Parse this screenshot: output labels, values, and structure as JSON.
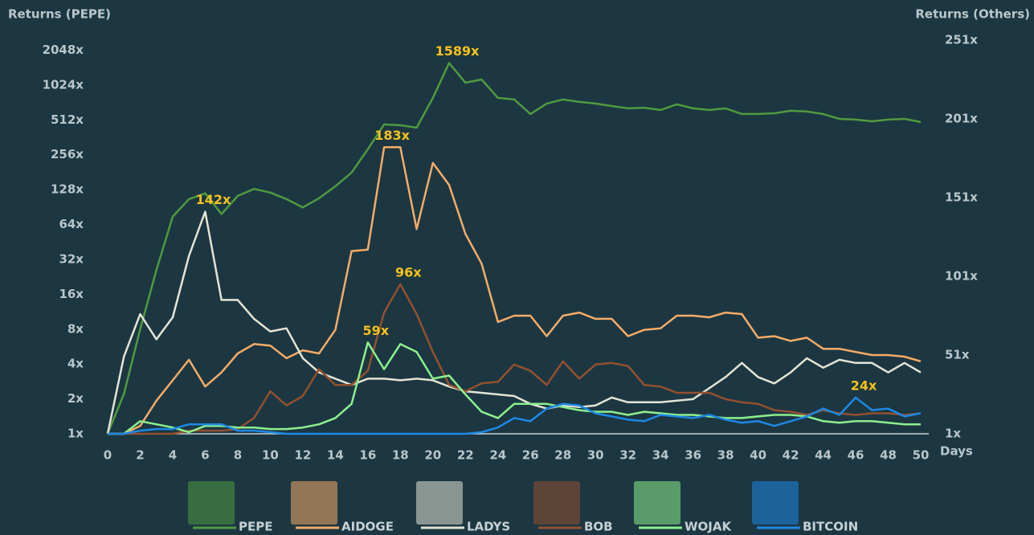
{
  "chart_data": {
    "type": "line",
    "y_label": "Returns (PEPE)",
    "y2_label": "Returns (Others)",
    "x_label": "Days",
    "x": [
      0,
      1,
      2,
      3,
      4,
      5,
      6,
      7,
      8,
      9,
      10,
      11,
      12,
      13,
      14,
      15,
      16,
      17,
      18,
      19,
      20,
      21,
      22,
      23,
      24,
      25,
      26,
      27,
      28,
      29,
      30,
      31,
      32,
      33,
      34,
      35,
      36,
      37,
      38,
      39,
      40,
      41,
      42,
      43,
      44,
      45,
      46,
      47,
      48,
      49,
      50
    ],
    "xlim": [
      0,
      50
    ],
    "xticks": [
      0,
      2,
      4,
      6,
      8,
      10,
      12,
      14,
      16,
      18,
      20,
      22,
      24,
      26,
      28,
      30,
      32,
      34,
      36,
      38,
      40,
      42,
      44,
      46,
      48,
      50
    ],
    "yscale": "log",
    "ylim": [
      1,
      2500
    ],
    "yticks": [
      {
        "value": 1,
        "label": "1x"
      },
      {
        "value": 2,
        "label": "2x"
      },
      {
        "value": 4,
        "label": "4x"
      },
      {
        "value": 8,
        "label": "8x"
      },
      {
        "value": 16,
        "label": "16x"
      },
      {
        "value": 32,
        "label": "32x"
      },
      {
        "value": 64,
        "label": "64x"
      },
      {
        "value": 128,
        "label": "128x"
      },
      {
        "value": 256,
        "label": "256x"
      },
      {
        "value": 512,
        "label": "512x"
      },
      {
        "value": 1024,
        "label": "1024x"
      },
      {
        "value": 2048,
        "label": "2048x"
      }
    ],
    "y2lim": [
      1,
      251
    ],
    "y2ticks": [
      {
        "value": 1,
        "label": "1x"
      },
      {
        "value": 51,
        "label": "51x"
      },
      {
        "value": 101,
        "label": "101x"
      },
      {
        "value": 151,
        "label": "151x"
      },
      {
        "value": 201,
        "label": "201x"
      },
      {
        "value": 251,
        "label": "251x"
      }
    ],
    "series": [
      {
        "name": "PEPE",
        "color": "#4f9a3f",
        "axis": "y",
        "values": [
          1,
          2.2,
          8,
          26,
          75,
          106,
          119,
          79,
          113,
          130,
          121,
          106,
          90,
          108,
          137,
          180,
          286,
          468,
          461,
          439,
          793,
          1589,
          1075,
          1144,
          793,
          770,
          576,
          709,
          770,
          733,
          709,
          675,
          644,
          653,
          624,
          698,
          644,
          624,
          644,
          576,
          576,
          585,
          614,
          605,
          576,
          523,
          515,
          498,
          515,
          523,
          491
        ],
        "value_labels": [
          null,
          null,
          null,
          null,
          null,
          null,
          null,
          null,
          null,
          null,
          null,
          null,
          null,
          null,
          null,
          null,
          null,
          null,
          null,
          null,
          null,
          "1589x",
          null,
          null,
          null,
          null,
          null,
          null,
          null,
          null,
          null,
          null,
          null,
          null,
          null,
          null,
          null,
          null,
          null,
          null,
          null,
          null,
          null,
          null,
          null,
          null,
          null,
          null,
          null,
          null,
          null
        ]
      },
      {
        "name": "AIDOGE",
        "color": "#f6ab66",
        "axis": "y2",
        "values": [
          1,
          1,
          6,
          22,
          35,
          48,
          31,
          40,
          52,
          58,
          57,
          49,
          54,
          52,
          67,
          117,
          118,
          183,
          183,
          131,
          173,
          159,
          128,
          109,
          72,
          76,
          76,
          63,
          76,
          78,
          74,
          74,
          63,
          67,
          68,
          76,
          76,
          75,
          78,
          77,
          62,
          63,
          60,
          62,
          55,
          55,
          53,
          51,
          51,
          50,
          47
        ],
        "value_labels": [
          null,
          null,
          null,
          null,
          null,
          null,
          null,
          null,
          null,
          null,
          null,
          null,
          null,
          null,
          null,
          null,
          null,
          "183x",
          null,
          null,
          null,
          null,
          null,
          null,
          null,
          null,
          null,
          null,
          null,
          null,
          null,
          null,
          null,
          null,
          null,
          null,
          null,
          null,
          null,
          null,
          null,
          null,
          null,
          null,
          null,
          null,
          null,
          null,
          null,
          null,
          null
        ]
      },
      {
        "name": "LADYS",
        "color": "#e4e4d4",
        "axis": "y2",
        "values": [
          1,
          50,
          77,
          61,
          75,
          114,
          142,
          86,
          86,
          74,
          66,
          68,
          49,
          40,
          36,
          32,
          36,
          36,
          35,
          36,
          35,
          31,
          28,
          27,
          26,
          25,
          20,
          17,
          19,
          18,
          19,
          24,
          21,
          21,
          21,
          22,
          23,
          30,
          37,
          46,
          37,
          33,
          40,
          49,
          43,
          48,
          46,
          46,
          40,
          46,
          40
        ],
        "value_labels": [
          null,
          null,
          null,
          null,
          null,
          null,
          "142x",
          null,
          null,
          null,
          null,
          null,
          null,
          null,
          null,
          null,
          null,
          null,
          null,
          null,
          null,
          null,
          null,
          null,
          null,
          null,
          null,
          null,
          null,
          null,
          null,
          null,
          null,
          null,
          null,
          null,
          null,
          null,
          null,
          null,
          null,
          null,
          null,
          null,
          null,
          null,
          null,
          null,
          null,
          null,
          null
        ]
      },
      {
        "name": "BOB",
        "color": "#93502f",
        "axis": "y2",
        "values": [
          1,
          1,
          1,
          1,
          1,
          3,
          3,
          3,
          4,
          11,
          28,
          19,
          25,
          42,
          32,
          32,
          41,
          78,
          96,
          77,
          53,
          32,
          28,
          33,
          34,
          45,
          41,
          32,
          47,
          36,
          45,
          46,
          44,
          32,
          31,
          27,
          27,
          27,
          23,
          21,
          20,
          16,
          15,
          13,
          16,
          14,
          13,
          14,
          14,
          13,
          14
        ],
        "value_labels": [
          null,
          null,
          null,
          null,
          null,
          null,
          null,
          null,
          null,
          null,
          null,
          null,
          null,
          null,
          null,
          null,
          null,
          null,
          "96x",
          null,
          null,
          null,
          null,
          null,
          null,
          null,
          null,
          null,
          null,
          null,
          null,
          null,
          null,
          null,
          null,
          null,
          null,
          null,
          null,
          null,
          null,
          null,
          null,
          null,
          null,
          null,
          null,
          null,
          null,
          null,
          null
        ]
      },
      {
        "name": "WOJAK",
        "color": "#8df08d",
        "axis": "y2",
        "values": [
          1,
          1,
          9,
          7,
          5,
          2,
          6,
          6,
          5,
          5,
          4,
          4,
          5,
          7,
          11,
          20,
          59,
          42,
          58,
          53,
          36,
          38,
          26,
          15,
          11,
          20,
          20,
          20,
          18,
          16,
          15,
          15,
          13,
          15,
          14,
          13,
          13,
          12,
          11,
          11,
          12,
          13,
          13,
          12,
          9,
          8,
          9,
          9,
          8,
          7,
          7
        ],
        "value_labels": [
          null,
          null,
          null,
          null,
          null,
          null,
          null,
          null,
          null,
          null,
          null,
          null,
          null,
          null,
          null,
          null,
          "59x",
          null,
          null,
          null,
          null,
          null,
          null,
          null,
          null,
          null,
          null,
          null,
          null,
          null,
          null,
          null,
          null,
          null,
          null,
          null,
          null,
          null,
          null,
          null,
          null,
          null,
          null,
          null,
          null,
          null,
          null,
          null,
          null,
          null,
          null
        ]
      },
      {
        "name": "BITCOIN",
        "color": "#1e88e5",
        "axis": "y2",
        "values": [
          1,
          1,
          3,
          4,
          4,
          7,
          7,
          7,
          3,
          3,
          2,
          1,
          1,
          1,
          1,
          1,
          1,
          1,
          1,
          1,
          1,
          1,
          1,
          2,
          5,
          11,
          9,
          17,
          20,
          19,
          14,
          12,
          10,
          9,
          13,
          12,
          11,
          13,
          10,
          8,
          9,
          6,
          9,
          12,
          17,
          13,
          24,
          16,
          17,
          12,
          14
        ],
        "value_labels": [
          null,
          null,
          null,
          null,
          null,
          null,
          null,
          null,
          null,
          null,
          null,
          null,
          null,
          null,
          null,
          null,
          null,
          null,
          null,
          null,
          null,
          null,
          null,
          null,
          null,
          null,
          null,
          null,
          null,
          null,
          null,
          null,
          null,
          null,
          null,
          null,
          null,
          null,
          null,
          null,
          null,
          null,
          null,
          null,
          null,
          null,
          "24x",
          null,
          null,
          null,
          null
        ]
      }
    ]
  }
}
